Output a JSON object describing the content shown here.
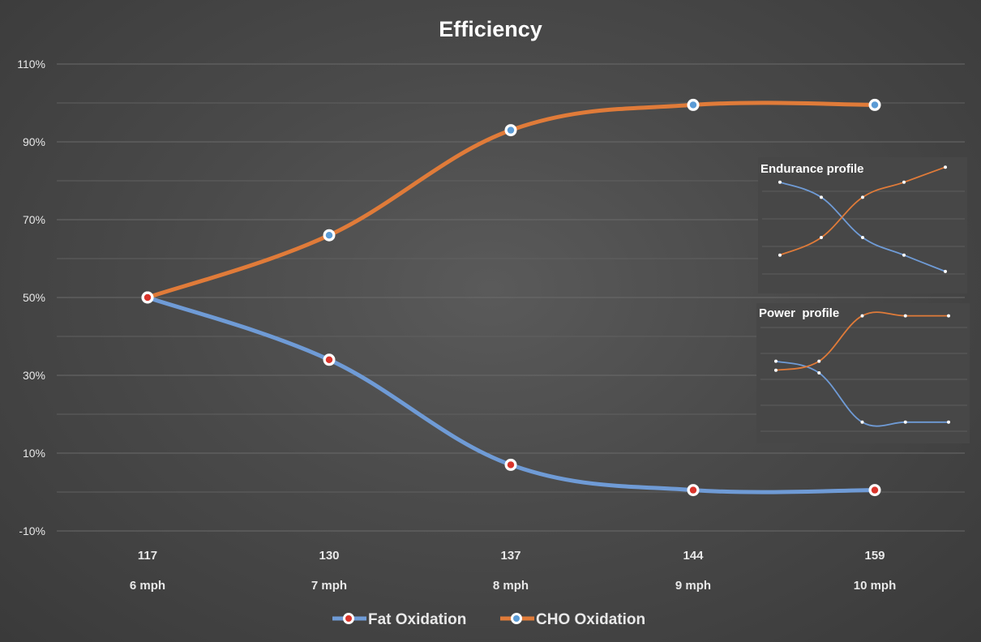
{
  "chart_data": [
    {
      "type": "line",
      "title": "Efficiency",
      "categories": [
        "117",
        "130",
        "137",
        "144",
        "159"
      ],
      "sublabels": [
        "6 mph",
        "7 mph",
        "8 mph",
        "9 mph",
        "10 mph"
      ],
      "ylim": [
        -10,
        110
      ],
      "yticks": [
        -10,
        10,
        30,
        50,
        70,
        90,
        110
      ],
      "ytick_labels": [
        "-10%",
        "10%",
        "30%",
        "50%",
        "70%",
        "90%",
        "110%"
      ],
      "grid": true,
      "legend_position": "bottom",
      "series": [
        {
          "name": "Fat Oxidation",
          "color": "#6f9bd6",
          "marker_color": "#d9342b",
          "values": [
            50,
            34,
            7,
            0.5,
            0.5
          ]
        },
        {
          "name": "CHO Oxidation",
          "color": "#e07b39",
          "marker_color": "#5b9bd5",
          "values": [
            50,
            66,
            93,
            99.5,
            99.5
          ]
        }
      ]
    },
    {
      "type": "line",
      "title": "Endurance profile",
      "ylim": [
        0,
        100
      ],
      "series": [
        {
          "color": "#6f9bd6",
          "values": [
            84,
            72,
            40,
            26,
            13
          ]
        },
        {
          "color": "#e07b39",
          "values": [
            26,
            40,
            72,
            84,
            96
          ]
        }
      ]
    },
    {
      "type": "line",
      "title": "Power  profile",
      "ylim": [
        0,
        100
      ],
      "series": [
        {
          "color": "#6f9bd6",
          "values": [
            59,
            50,
            12,
            12,
            12
          ]
        },
        {
          "color": "#e07b39",
          "values": [
            52,
            59,
            94,
            94,
            94
          ]
        }
      ]
    }
  ]
}
